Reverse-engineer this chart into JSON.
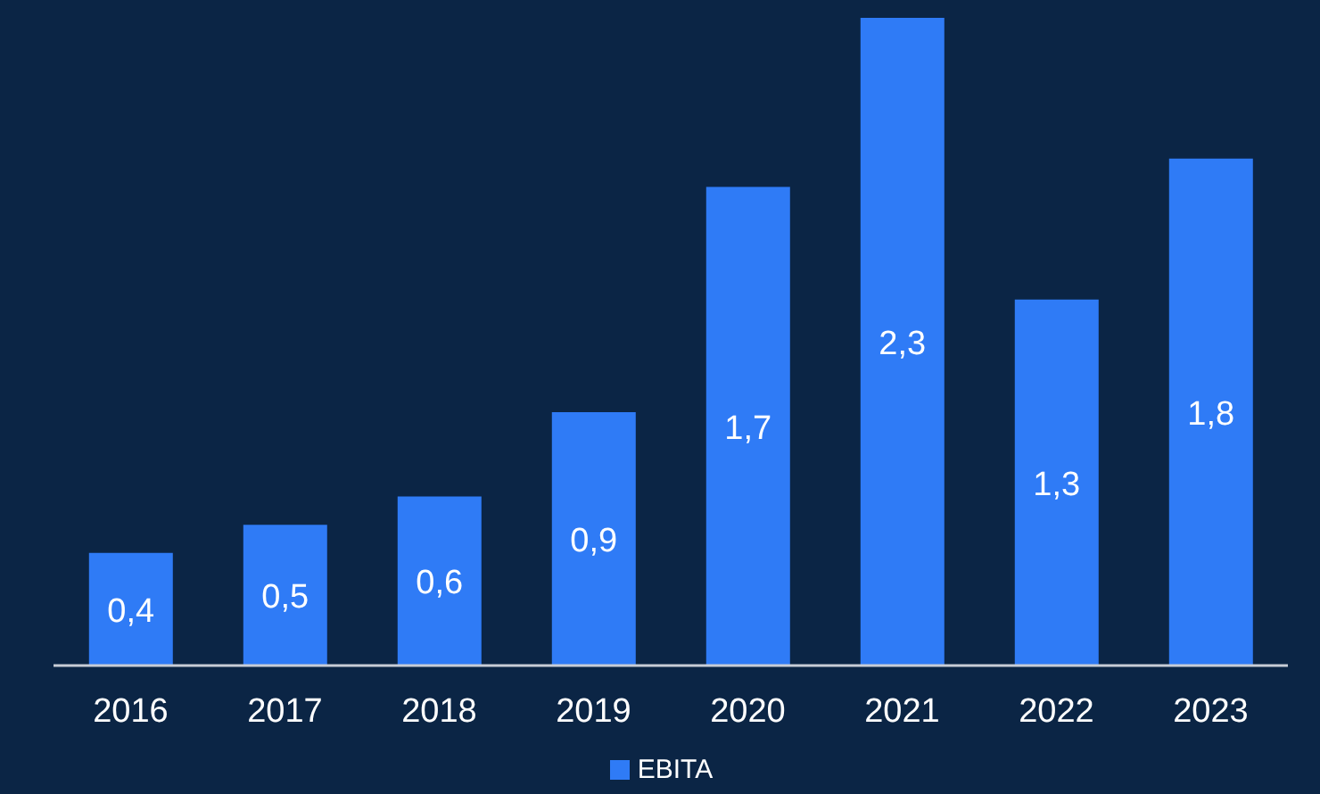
{
  "chart_data": {
    "type": "bar",
    "categories": [
      "2016",
      "2017",
      "2018",
      "2019",
      "2020",
      "2021",
      "2022",
      "2023"
    ],
    "series": [
      {
        "name": "EBITA",
        "color": "#2f7bf6",
        "values": [
          0.4,
          0.5,
          0.6,
          0.9,
          1.7,
          2.3,
          1.3,
          1.8
        ],
        "value_labels": [
          "0,4",
          "0,5",
          "0,6",
          "0,9",
          "1,7",
          "2,3",
          "1,3",
          "1,8"
        ]
      }
    ],
    "legend": "bottom",
    "grid": false,
    "tick_labels": "x"
  }
}
